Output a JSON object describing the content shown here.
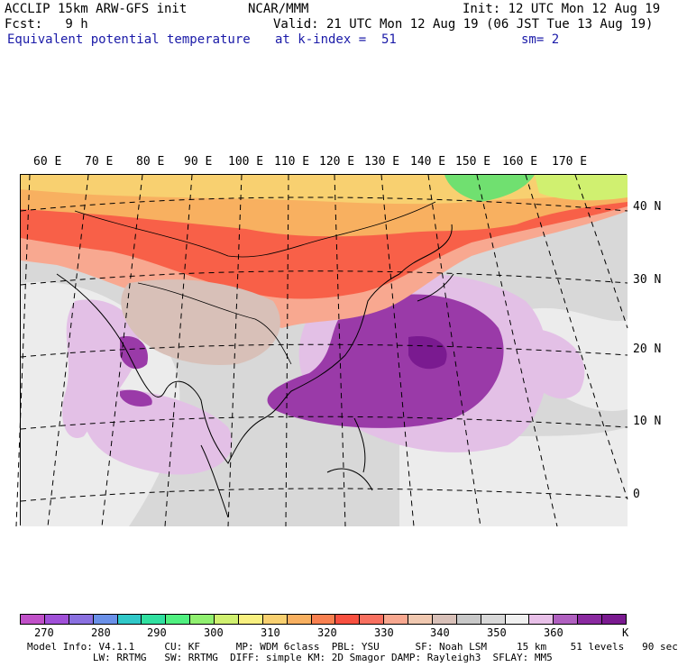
{
  "header": {
    "model": "ACCLIP 15km ARW-GFS init",
    "org": "NCAR/MMM",
    "init": "Init: 12 UTC Mon 12 Aug 19",
    "fcst": "Fcst:   9 h",
    "valid": "Valid: 21 UTC Mon 12 Aug 19 (06 JST Tue 13 Aug 19)",
    "field": "Equivalent potential temperature",
    "level": "at k-index =  51",
    "smooth": "sm= 2"
  },
  "lon_labels": [
    "60 E",
    "70 E",
    "80 E",
    "90 E",
    "100 E",
    "110 E",
    "120 E",
    "130 E",
    "140 E",
    "150 E",
    "160 E",
    "170 E"
  ],
  "lat_labels": [
    "40 N",
    "30 N",
    "20 N",
    "10 N",
    "0"
  ],
  "colorbar": {
    "colors": [
      "#c050c8",
      "#a050d8",
      "#8a70e0",
      "#6a90e8",
      "#30c8c8",
      "#30e0a0",
      "#50f080",
      "#90f070",
      "#d0f070",
      "#f8f080",
      "#f8d070",
      "#f8b060",
      "#f88050",
      "#f85040",
      "#f87060",
      "#f8a890",
      "#f0c8b0",
      "#d8c0b8",
      "#c8c8c8",
      "#d8d8d8",
      "#f0f0f0",
      "#e8c0e8",
      "#b060c0",
      "#8a2aa0",
      "#7a1a90"
    ],
    "labels": [
      "270",
      "280",
      "290",
      "300",
      "310",
      "320",
      "330",
      "340",
      "350",
      "360"
    ],
    "unit": "K"
  },
  "footer": {
    "line1": "Model Info: V4.1.1     CU: KF      MP: WDM 6class  PBL: YSU      SF: Noah LSM     15 km    51 levels   90 sec",
    "line2": "           LW: RRTMG   SW: RRTMG  DIFF: simple KM: 2D Smagor DAMP: Rayleigh3  SFLAY: MM5"
  }
}
